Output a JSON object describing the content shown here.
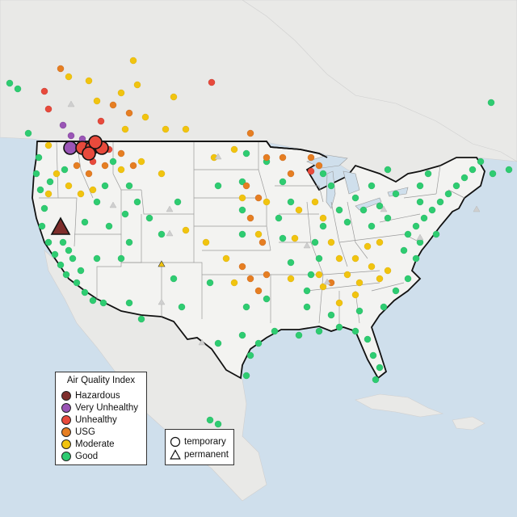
{
  "colors": {
    "ocean": "#cfdfec",
    "land_us": "#f3f3f1",
    "land_other": "#e9e9e7",
    "state_line": "#9a9a9a",
    "border": "#111111",
    "permanent_marker": "#cfcfcf"
  },
  "aqi_legend": {
    "title": "Air Quality Index",
    "items": [
      {
        "label": "Hazardous",
        "color": "#7e2d2b"
      },
      {
        "label": "Very Unhealthy",
        "color": "#9a55b6"
      },
      {
        "label": "Unhealthy",
        "color": "#e84a3c"
      },
      {
        "label": "USG",
        "color": "#e67e22"
      },
      {
        "label": "Moderate",
        "color": "#f1c40f"
      },
      {
        "label": "Good",
        "color": "#2ecc71"
      }
    ]
  },
  "type_legend": {
    "items": [
      {
        "label": "temporary",
        "shape": "circle-icon"
      },
      {
        "label": "permanent",
        "shape": "triangle-icon"
      }
    ]
  },
  "monitors": {
    "hazardous_triangle_count": 1,
    "very_unhealthy_large_count": 1,
    "unhealthy_large_count": 6
  }
}
